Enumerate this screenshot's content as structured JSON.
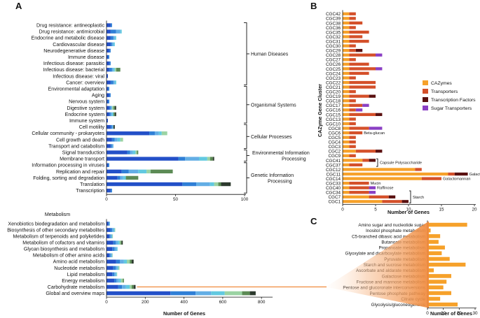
{
  "figure_labels": {
    "a": "A",
    "b": "B",
    "c": "C"
  },
  "chart_data": [
    {
      "id": "A-top",
      "type": "bar",
      "orientation": "horizontal",
      "stacked": true,
      "xlim": [
        0,
        100
      ],
      "xticks": [
        "0",
        "50",
        "100"
      ],
      "ylabel": "",
      "xlabel": "",
      "palette": [
        "#2350c8",
        "#2f7fd6",
        "#63aee5",
        "#62c9e0",
        "#9bd3a3",
        "#5c8b55",
        "#2d3a2e"
      ],
      "categories": [
        "Drug resistance: antineoplastic",
        "Drug resistance: antimicrobial",
        "Endocrine and metabolic disease",
        "Cardiovascular disease",
        "Neurodegenerative disease",
        "Immune disease",
        "Infectious disease: parasitic",
        "Infectious disease: bacterial",
        "Infectious disease: viral",
        "Cancer: overview",
        "Environmental adaptation",
        "Aging",
        "Nervous system",
        "Digestive system",
        "Endocrine system",
        "Immune system",
        "Cell motility",
        "Cellular community - prokaryotes",
        "Cell growth and death",
        "Transport and catabolism",
        "Signal transduction",
        "Membrane transport",
        "Information processing in viruses",
        "Replication and repair",
        "Folding, sorting and degradation",
        "Translation",
        "Transcription"
      ],
      "values": [
        [
          3,
          1,
          0,
          0,
          0,
          0,
          0
        ],
        [
          3,
          4,
          3,
          1,
          0,
          0,
          0
        ],
        [
          3,
          2,
          1,
          1,
          0,
          0,
          0
        ],
        [
          3,
          1,
          1,
          1,
          0,
          0,
          0
        ],
        [
          2,
          1,
          0,
          0,
          0,
          0,
          0
        ],
        [
          1,
          1,
          0,
          0,
          0,
          0,
          0
        ],
        [
          2,
          1,
          0,
          0,
          0,
          0,
          0
        ],
        [
          2,
          2,
          1,
          1,
          1,
          3,
          0
        ],
        [
          1,
          0,
          0,
          0,
          0,
          0,
          0
        ],
        [
          3,
          2,
          1,
          1,
          0,
          0,
          0
        ],
        [
          1,
          1,
          0,
          0,
          0,
          0,
          0
        ],
        [
          2,
          1,
          0,
          0,
          0,
          0,
          0
        ],
        [
          1,
          1,
          0,
          0,
          0,
          0,
          0
        ],
        [
          2,
          1,
          1,
          0,
          1,
          1,
          1
        ],
        [
          2,
          1,
          1,
          1,
          0,
          1,
          1
        ],
        [
          1,
          0,
          0,
          0,
          0,
          0,
          0
        ],
        [
          3,
          1,
          1,
          0,
          0,
          0,
          1
        ],
        [
          31,
          4,
          3,
          2,
          4,
          0,
          0
        ],
        [
          4,
          2,
          2,
          2,
          2,
          0,
          0
        ],
        [
          3,
          1,
          1,
          0,
          0,
          0,
          0
        ],
        [
          15,
          2,
          2,
          2,
          1,
          1,
          0
        ],
        [
          52,
          5,
          10,
          6,
          2,
          2,
          1
        ],
        [
          1,
          1,
          0,
          0,
          0,
          0,
          0
        ],
        [
          11,
          5,
          7,
          6,
          3,
          16,
          0
        ],
        [
          8,
          2,
          2,
          2,
          0,
          9,
          0
        ],
        [
          55,
          10,
          10,
          3,
          3,
          2,
          7
        ],
        [
          3,
          1,
          0,
          0,
          0,
          0,
          0
        ]
      ],
      "groups": [
        {
          "name": "Human Diseases",
          "from": 0,
          "to": 9
        },
        {
          "name": "Organismal Systems",
          "from": 10,
          "to": 15
        },
        {
          "name": "Cellular Processes",
          "from": 16,
          "to": 19
        },
        {
          "name": "Environmental Information Processing",
          "from": 20,
          "to": 21
        },
        {
          "name": "Genetic Information Processing",
          "from": 22,
          "to": 26
        }
      ]
    },
    {
      "id": "A-bottom",
      "type": "bar",
      "orientation": "horizontal",
      "stacked": true,
      "title": "Metabolism",
      "xlabel": "Number of Genes",
      "xlim": [
        0,
        850
      ],
      "xticks": [
        "0",
        "200",
        "400",
        "600",
        "800"
      ],
      "palette": [
        "#2350c8",
        "#2f7fd6",
        "#63aee5",
        "#62c9e0",
        "#9bd3a3",
        "#5c8b55",
        "#2d3a2e"
      ],
      "categories": [
        "Xenobiotics biodegradation and metabolism",
        "Biosynthesis of other secondary metabolites",
        "Metabolism of terpenoids and polyketides",
        "Metabolism of cofactors and vitamins",
        "Glycan biosynthesis and metabolism",
        "Metabolism of other amino acids",
        "Amino acid metabolism",
        "Nucleotide metabolism",
        "Lipid metabolism",
        "Energy metabolism",
        "Carbohydrate metabolism",
        "Global and overview maps"
      ],
      "values": [
        [
          10,
          4,
          2,
          2,
          0,
          0,
          0
        ],
        [
          20,
          10,
          8,
          4,
          3,
          0,
          0
        ],
        [
          15,
          6,
          6,
          3,
          3,
          0,
          0
        ],
        [
          35,
          12,
          12,
          8,
          6,
          5,
          6
        ],
        [
          30,
          12,
          10,
          5,
          0,
          0,
          0
        ],
        [
          15,
          5,
          8,
          2,
          2,
          0,
          0
        ],
        [
          50,
          20,
          20,
          15,
          15,
          10,
          10
        ],
        [
          35,
          12,
          10,
          5,
          5,
          0,
          0
        ],
        [
          30,
          10,
          8,
          5,
          2,
          0,
          0
        ],
        [
          40,
          12,
          12,
          10,
          10,
          6,
          0
        ],
        [
          60,
          20,
          20,
          20,
          10,
          10,
          10
        ],
        [
          330,
          130,
          80,
          70,
          90,
          40,
          30
        ]
      ]
    },
    {
      "id": "B",
      "type": "bar",
      "orientation": "horizontal",
      "stacked": true,
      "xlabel": "Number of Genes",
      "ylabel": "CAZyme  Gene Cluster",
      "xlim": [
        0,
        20
      ],
      "xticks": [
        "0",
        "5",
        "10",
        "15",
        "20"
      ],
      "series": [
        {
          "name": "CAZymes",
          "color": "#f6a12a"
        },
        {
          "name": "Transporters",
          "color": "#d4502a"
        },
        {
          "name": "Transcription Factors",
          "color": "#5a1010"
        },
        {
          "name": "Sugar Transporters",
          "color": "#8a3fc4"
        }
      ],
      "categories": [
        "CGC42",
        "CGC39",
        "CGC38",
        "CGC36",
        "CGC35",
        "CGC32",
        "CGC31",
        "CGC30",
        "CGC29",
        "CGC28",
        "CGC27",
        "CGC26",
        "CGC25",
        "CGC24",
        "CGC23",
        "CGC22",
        "CGC21",
        "CGC20",
        "CGC19",
        "CGC18",
        "CGC17",
        "CGC16",
        "CGC15",
        "CGC13",
        "CGC10",
        "CGC8",
        "CGC6",
        "CGC5",
        "CGC4",
        "CGC3",
        "CGC2",
        "CGC9",
        "CGC41",
        "CGC37",
        "CGC12",
        "CGC11",
        "CGC14",
        "CGC33",
        "CGC40",
        "CGC34",
        "CGC7",
        "CGC1"
      ],
      "values": [
        [
          1,
          1,
          0,
          0
        ],
        [
          1,
          1,
          0,
          0
        ],
        [
          1,
          2,
          0,
          0
        ],
        [
          1,
          1,
          0,
          0
        ],
        [
          1,
          3,
          0,
          0
        ],
        [
          1,
          2,
          0,
          0
        ],
        [
          1,
          3,
          0,
          0
        ],
        [
          1,
          1,
          0,
          0
        ],
        [
          1,
          1,
          1,
          0
        ],
        [
          1,
          4,
          0,
          1
        ],
        [
          1,
          1,
          0,
          0
        ],
        [
          1,
          3,
          0,
          0
        ],
        [
          1,
          4,
          0,
          1
        ],
        [
          1,
          3,
          0,
          0
        ],
        [
          1,
          1,
          0,
          0
        ],
        [
          1,
          4,
          0,
          0
        ],
        [
          1,
          4,
          0,
          0
        ],
        [
          1,
          1,
          0,
          0
        ],
        [
          1,
          3,
          1,
          0
        ],
        [
          1,
          1,
          0,
          0
        ],
        [
          1,
          2,
          0,
          1
        ],
        [
          1,
          1,
          0,
          1
        ],
        [
          1,
          4,
          1,
          0
        ],
        [
          1,
          1,
          0,
          0
        ],
        [
          1,
          1,
          0,
          0
        ],
        [
          1,
          3,
          0,
          2
        ],
        [
          1,
          2,
          0,
          0
        ],
        [
          1,
          1,
          0,
          0
        ],
        [
          1,
          1,
          0,
          0
        ],
        [
          1,
          1,
          0,
          0
        ],
        [
          2,
          3,
          1,
          0
        ],
        [
          1,
          1,
          0,
          0
        ],
        [
          3,
          1,
          1,
          0
        ],
        [
          1,
          2,
          0,
          0
        ],
        [
          11,
          1,
          0,
          0
        ],
        [
          16,
          1,
          2,
          0
        ],
        [
          12,
          3,
          0,
          0
        ],
        [
          1,
          3,
          0,
          0
        ],
        [
          1,
          3,
          0,
          1
        ],
        [
          1,
          3,
          0,
          1
        ],
        [
          4,
          3,
          1,
          0
        ],
        [
          6,
          3,
          1,
          0
        ]
      ],
      "annotations": [
        {
          "text": "Beta-glucan",
          "row": 26
        },
        {
          "text": "Capsule  Polysaccharide",
          "from": 32,
          "to": 33
        },
        {
          "text": "Galactan",
          "row": 35
        },
        {
          "text": "Galactomannan",
          "row": 36
        },
        {
          "text": "Mucin",
          "row": 37
        },
        {
          "text": "Raffinose",
          "row": 38
        },
        {
          "text": "Starch",
          "from": 39,
          "to": 41
        }
      ]
    },
    {
      "id": "C",
      "type": "bar",
      "orientation": "horizontal",
      "xlabel": "Number of Genes",
      "xlim": [
        0,
        30
      ],
      "xticks": [
        "0",
        "10",
        "20",
        "30"
      ],
      "color": "#f6a12a",
      "categories": [
        "Amino sugar and nucleotide sugar",
        "Inositol phosphate metabolism",
        "C5-branched dibasic acid metabolism",
        "Butanoate metabolism",
        "Propanoate metabolism",
        "Glyoxylate and dicarboxylate metabolism",
        "Pyruvate metabolism",
        "Starch and sucrose metabolism",
        "Ascorbate and aldarate metabolism",
        "Galactose metabolism",
        "Fructose and mannose metabolism",
        "Pentose and glucoronate interconversions",
        "Pentose phosphate pathway",
        "Citrate cycle",
        "Glycolysis/gluconeogenesis"
      ],
      "values": [
        25,
        2,
        8,
        7,
        11,
        9,
        14,
        24,
        4,
        15,
        12,
        10,
        15,
        8,
        19
      ]
    }
  ]
}
